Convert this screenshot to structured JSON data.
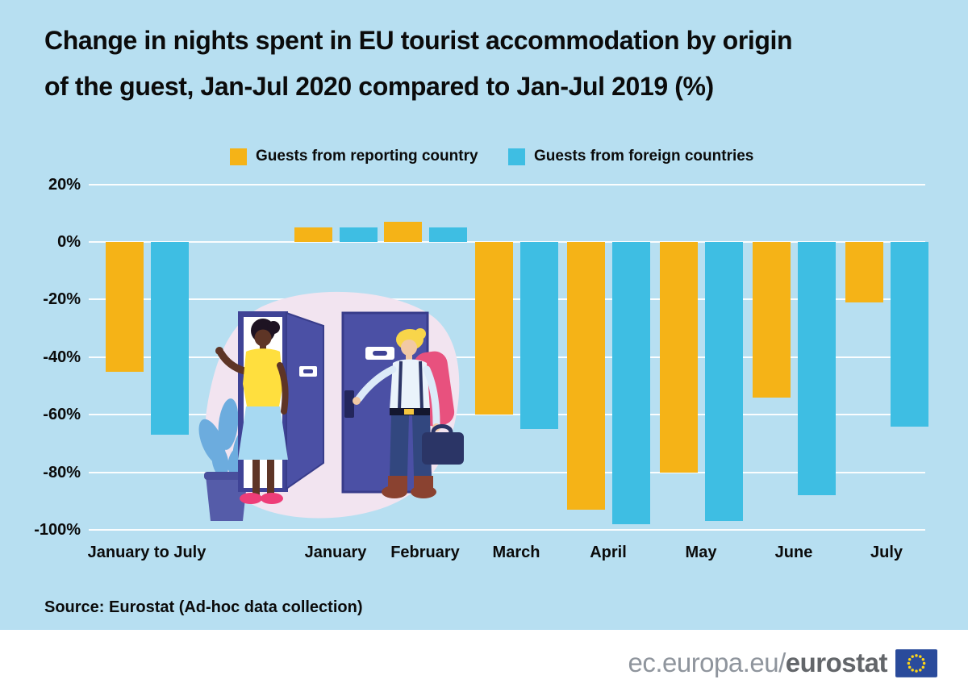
{
  "title": {
    "line1": "Change in nights spent in EU tourist accommodation by origin",
    "line2": "of the guest, Jan-Jul 2020 compared to Jan-Jul 2019 (%)"
  },
  "legend": [
    {
      "label": "Guests from reporting country",
      "color": "#F5B317"
    },
    {
      "label": "Guests from foreign countries",
      "color": "#3EBEE3"
    }
  ],
  "source": "Source: Eurostat (Ad-hoc data collection)",
  "footer": {
    "url_regular": "ec.europa.eu/",
    "url_bold": "eurostat"
  },
  "icons": {
    "eu_flag": "eu-flag-icon",
    "illustration": "hotel-doors-illustration"
  },
  "colors": {
    "background": "#B7DFF1",
    "bar_yellow": "#F5B317",
    "bar_blue": "#3EBEE3",
    "gridline": "#FFFFFF",
    "text": "#0B0B0B",
    "footer_background": "#FFFFFF",
    "footer_text_regular": "#8F959D",
    "footer_text_bold": "#63666A",
    "eu_flag_blue": "#2A4B9B",
    "eu_flag_stars": "#FFD617"
  },
  "chart_data": {
    "type": "bar",
    "title": "Change in nights spent in EU tourist accommodation by origin of the guest, Jan-Jul 2020 compared to Jan-Jul 2019 (%)",
    "categories": [
      "January to July",
      "January",
      "February",
      "March",
      "April",
      "May",
      "June",
      "July"
    ],
    "series": [
      {
        "name": "Guests from reporting country",
        "color": "#F5B317",
        "values": [
          -45,
          5,
          7,
          -60,
          -93,
          -80,
          -54,
          -21
        ]
      },
      {
        "name": "Guests from foreign countries",
        "color": "#3EBEE3",
        "values": [
          -67,
          5,
          5,
          -65,
          -98,
          -97,
          -88,
          -64
        ]
      }
    ],
    "unit": "%",
    "xlabel": "",
    "ylabel": "",
    "y_ticks": [
      20,
      0,
      -20,
      -40,
      -60,
      -80,
      -100
    ],
    "y_tick_labels": [
      "20%",
      "0%",
      "-20%",
      "-40%",
      "-60%",
      "-80%",
      "-100%"
    ],
    "ylim": [
      -100,
      20
    ],
    "grid": true,
    "legend_position": "top"
  }
}
